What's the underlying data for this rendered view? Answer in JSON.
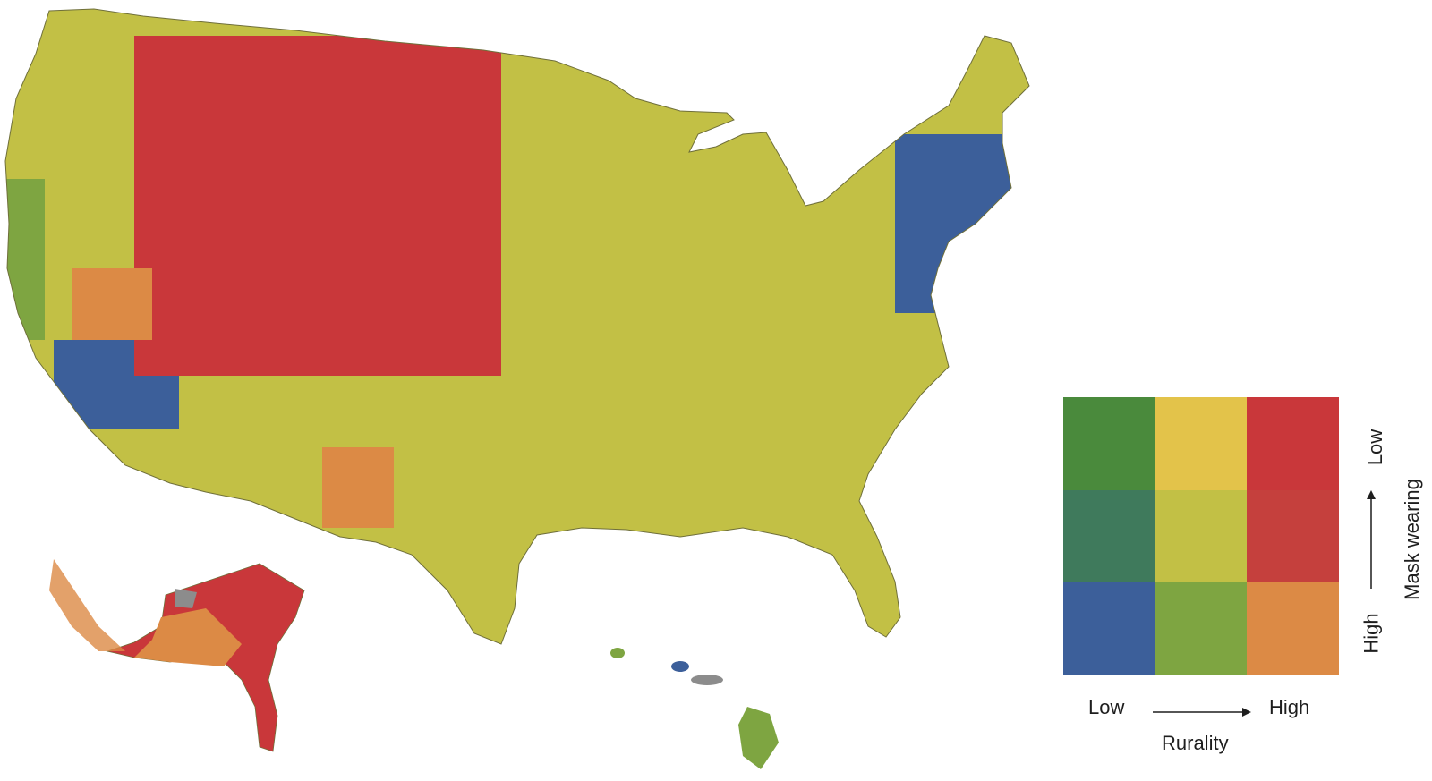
{
  "legend": {
    "x_axis_low": "Low",
    "x_axis_high": "High",
    "x_axis_title": "Rurality",
    "y_axis_low": "Low",
    "y_axis_high": "High",
    "y_axis_title": "Mask wearing",
    "grid_colors": [
      [
        "#4a8a3c",
        "#e3c34a",
        "#c9373a"
      ],
      [
        "#3f7a5c",
        "#c2c045",
        "#c5403d"
      ],
      [
        "#3c5f9a",
        "#7ea541",
        "#dc8a45"
      ]
    ]
  },
  "map": {
    "region_colors": {
      "low_rural_low_mask": "#4a8a3c",
      "mid_rural_low_mask": "#e3c34a",
      "high_rural_low_mask": "#c9373a",
      "low_rural_mid_mask": "#3f7a5c",
      "mid_rural_mid_mask": "#c2c045",
      "high_rural_mid_mask": "#c5403d",
      "low_rural_high_mask": "#3c5f9a",
      "mid_rural_high_mask": "#7ea541",
      "high_rural_high_mask": "#dc8a45",
      "no_data": "#8c8c8c"
    }
  }
}
